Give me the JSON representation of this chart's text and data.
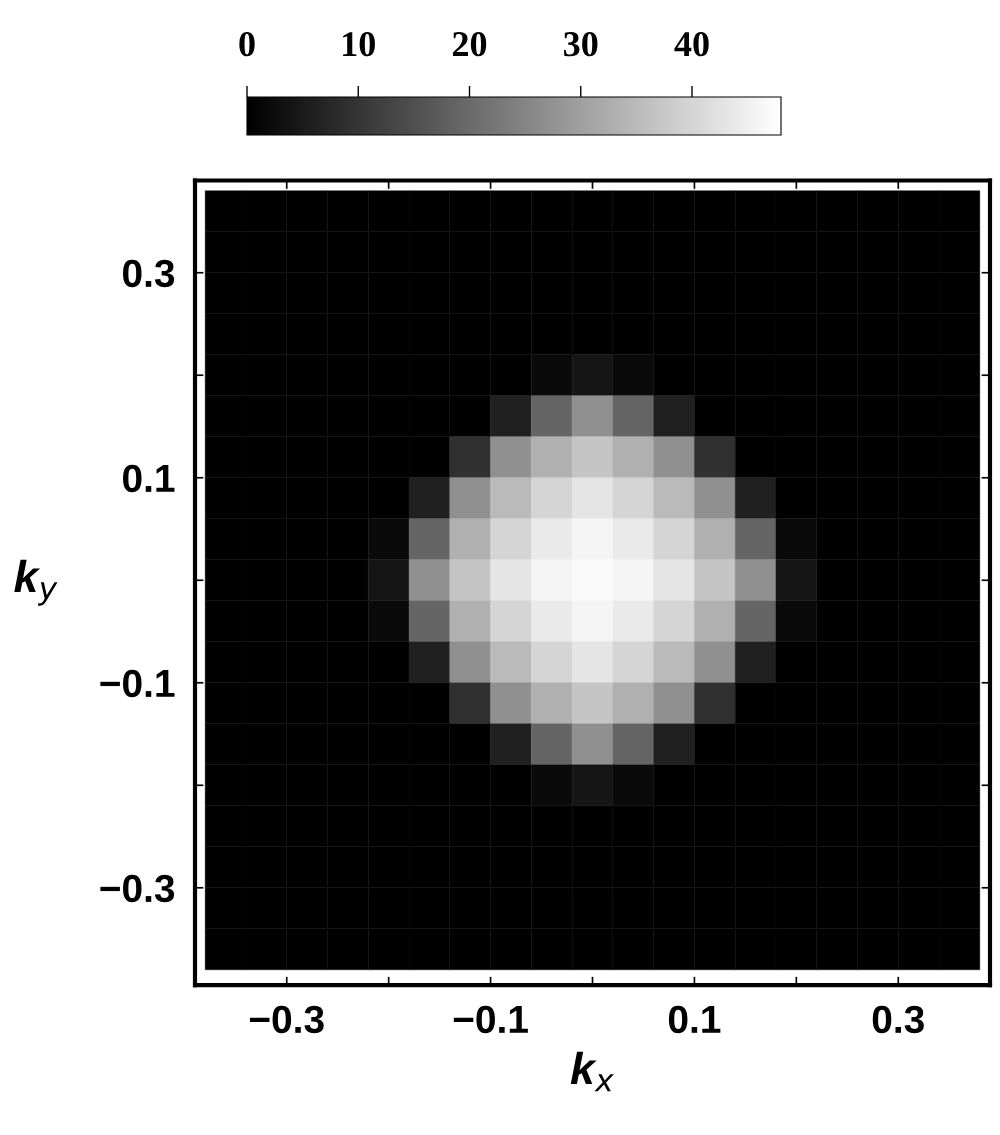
{
  "chart_data": {
    "type": "heatmap",
    "xlabel": "k$_{x}$",
    "ylabel": "k$_{y}$",
    "x": [
      -0.36,
      -0.32,
      -0.28,
      -0.24,
      -0.2,
      -0.16,
      -0.12,
      -0.08,
      -0.04,
      0,
      0.04,
      0.08,
      0.12,
      0.16,
      0.2,
      0.24,
      0.28,
      0.32,
      0.36
    ],
    "y": [
      0.36,
      0.32,
      0.28,
      0.24,
      0.2,
      0.16,
      0.12,
      0.08,
      0.04,
      0,
      -0.04,
      -0.08,
      -0.12,
      -0.16,
      -0.2,
      -0.24,
      -0.28,
      -0.32,
      -0.36
    ],
    "cells": [
      [
        0,
        0,
        0,
        0,
        0,
        0,
        0,
        0,
        0,
        0,
        0,
        0,
        0,
        0,
        0,
        0,
        0,
        0,
        0
      ],
      [
        0,
        0,
        0,
        0,
        0,
        0,
        0,
        0,
        0,
        0,
        0,
        0,
        0,
        0,
        0,
        0,
        0,
        0,
        0
      ],
      [
        0,
        0,
        0,
        0,
        0,
        0,
        0,
        0,
        0,
        0,
        0,
        0,
        0,
        0,
        0,
        0,
        0,
        0,
        0
      ],
      [
        0,
        0,
        0,
        0,
        0,
        0,
        0,
        0,
        0,
        0,
        0,
        0,
        0,
        0,
        0,
        0,
        0,
        0,
        0
      ],
      [
        0,
        0,
        0,
        0,
        0,
        0,
        0,
        0,
        2,
        4,
        2,
        0,
        0,
        0,
        0,
        0,
        0,
        0,
        0
      ],
      [
        0,
        0,
        0,
        0,
        0,
        0,
        0,
        6,
        19,
        27,
        19,
        6,
        0,
        0,
        0,
        0,
        0,
        0,
        0
      ],
      [
        0,
        0,
        0,
        0,
        0,
        0,
        9,
        27,
        33,
        37,
        33,
        27,
        9,
        0,
        0,
        0,
        0,
        0,
        0
      ],
      [
        0,
        0,
        0,
        0,
        0,
        6,
        27,
        35,
        40,
        43,
        40,
        35,
        27,
        6,
        0,
        0,
        0,
        0,
        0
      ],
      [
        0,
        0,
        0,
        0,
        2,
        19,
        33,
        40,
        44,
        46,
        44,
        40,
        33,
        19,
        2,
        0,
        0,
        0,
        0
      ],
      [
        0,
        0,
        0,
        0,
        4,
        27,
        37,
        43,
        46,
        47,
        46,
        43,
        37,
        27,
        4,
        0,
        0,
        0,
        0
      ],
      [
        0,
        0,
        0,
        0,
        2,
        19,
        33,
        40,
        44,
        46,
        44,
        40,
        33,
        19,
        2,
        0,
        0,
        0,
        0
      ],
      [
        0,
        0,
        0,
        0,
        0,
        6,
        27,
        35,
        40,
        43,
        40,
        35,
        27,
        6,
        0,
        0,
        0,
        0,
        0
      ],
      [
        0,
        0,
        0,
        0,
        0,
        0,
        9,
        27,
        33,
        37,
        33,
        27,
        9,
        0,
        0,
        0,
        0,
        0,
        0
      ],
      [
        0,
        0,
        0,
        0,
        0,
        0,
        0,
        6,
        19,
        27,
        19,
        6,
        0,
        0,
        0,
        0,
        0,
        0,
        0
      ],
      [
        0,
        0,
        0,
        0,
        0,
        0,
        0,
        0,
        2,
        4,
        2,
        0,
        0,
        0,
        0,
        0,
        0,
        0,
        0
      ],
      [
        0,
        0,
        0,
        0,
        0,
        0,
        0,
        0,
        0,
        0,
        0,
        0,
        0,
        0,
        0,
        0,
        0,
        0,
        0
      ],
      [
        0,
        0,
        0,
        0,
        0,
        0,
        0,
        0,
        0,
        0,
        0,
        0,
        0,
        0,
        0,
        0,
        0,
        0,
        0
      ],
      [
        0,
        0,
        0,
        0,
        0,
        0,
        0,
        0,
        0,
        0,
        0,
        0,
        0,
        0,
        0,
        0,
        0,
        0,
        0
      ],
      [
        0,
        0,
        0,
        0,
        0,
        0,
        0,
        0,
        0,
        0,
        0,
        0,
        0,
        0,
        0,
        0,
        0,
        0,
        0
      ]
    ],
    "xlim": [
      -0.39,
      0.39
    ],
    "ylim": [
      -0.395,
      0.39
    ],
    "xticks": [
      {
        "value": -0.3,
        "label": "−0.3"
      },
      {
        "value": -0.2,
        "label": null
      },
      {
        "value": -0.1,
        "label": "−0.1"
      },
      {
        "value": 0,
        "label": null
      },
      {
        "value": 0.1,
        "label": "0.1"
      },
      {
        "value": 0.2,
        "label": null
      },
      {
        "value": 0.3,
        "label": "0.3"
      }
    ],
    "yticks": [
      {
        "value": -0.3,
        "label": "−0.3"
      },
      {
        "value": -0.2,
        "label": null
      },
      {
        "value": -0.1,
        "label": "−0.1"
      },
      {
        "value": 0,
        "label": null
      },
      {
        "value": 0.1,
        "label": "0.1"
      },
      {
        "value": 0.2,
        "label": null
      },
      {
        "value": 0.3,
        "label": "0.3"
      }
    ],
    "clim": [
      0,
      48
    ],
    "cticks": [
      0,
      10,
      20,
      30,
      40
    ],
    "grid": false
  }
}
